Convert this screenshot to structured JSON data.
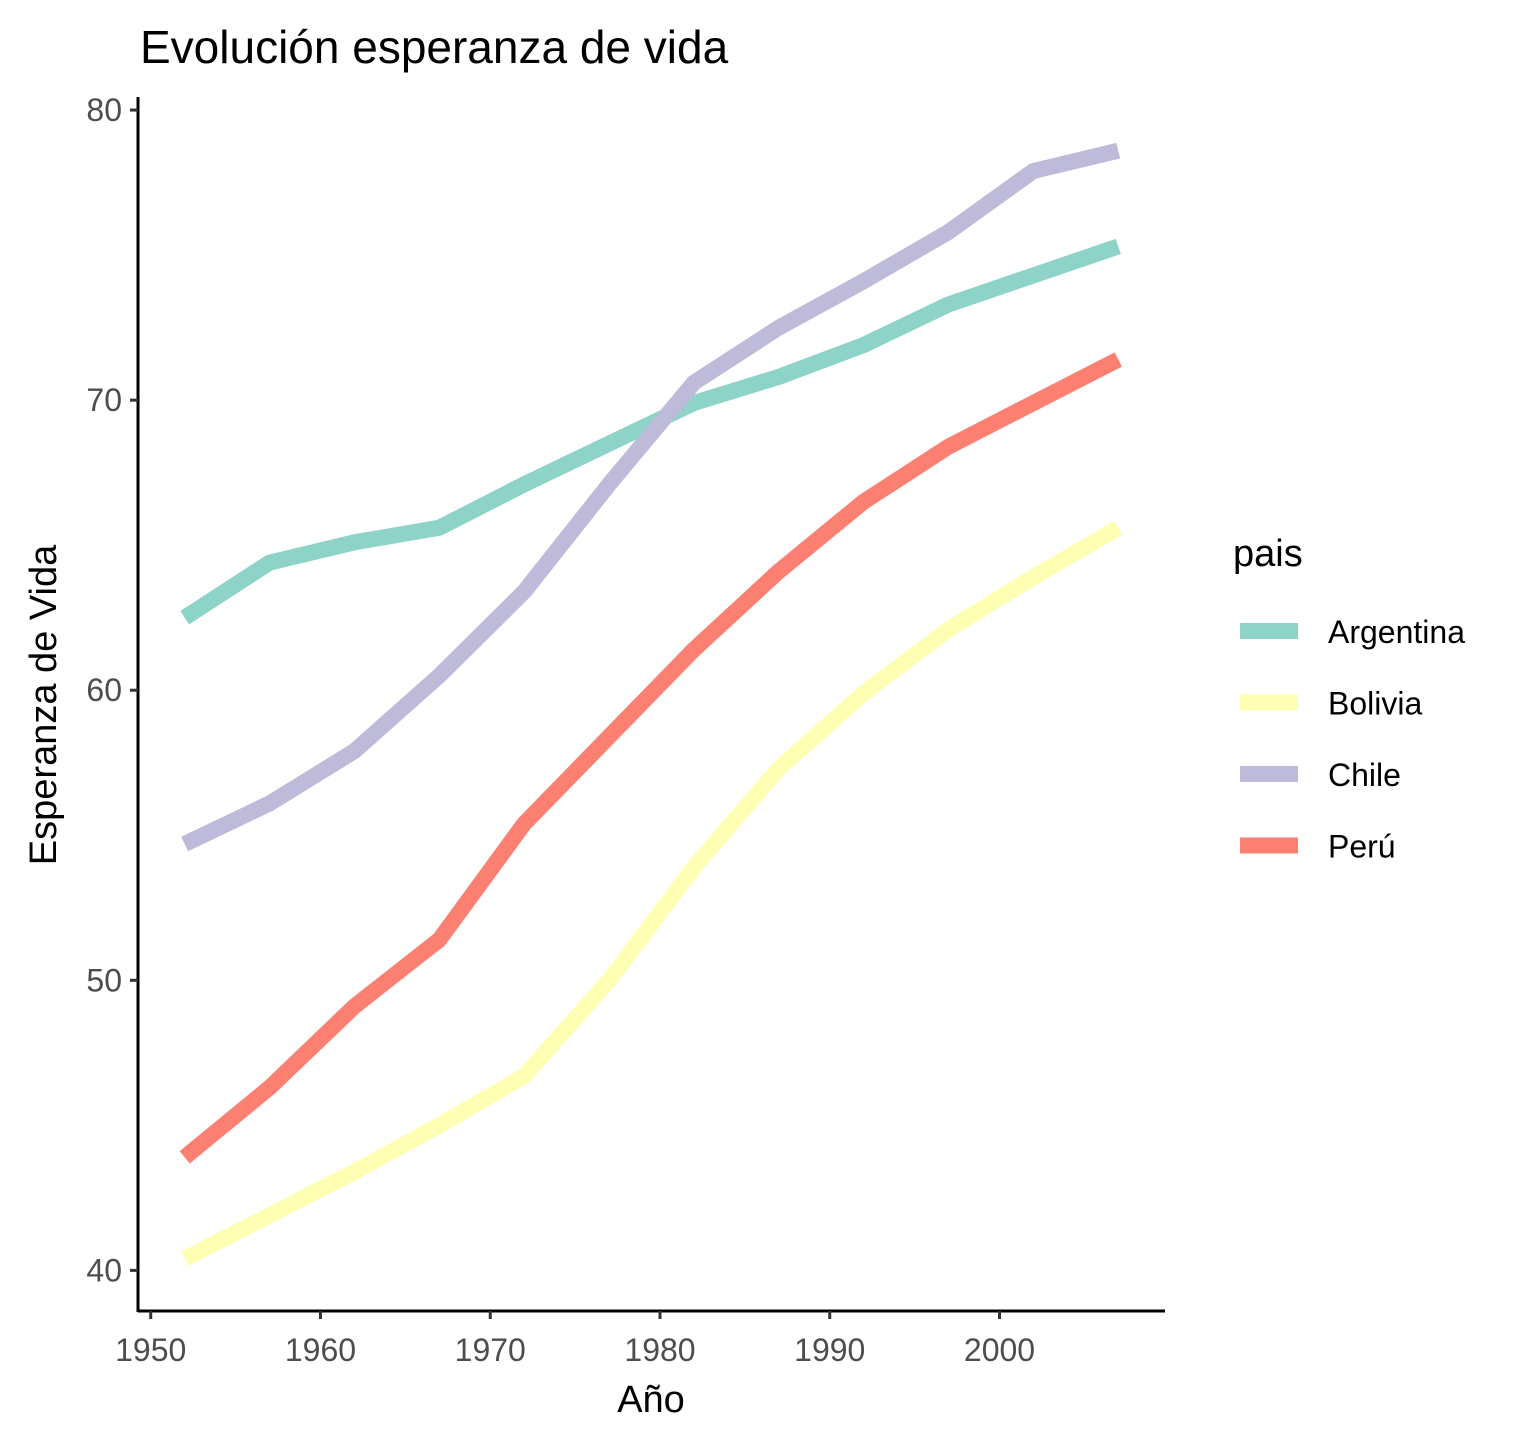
{
  "chart_data": {
    "type": "line",
    "title": "Evolución esperanza de vida",
    "xlabel": "Año",
    "ylabel": "Esperanza de Vida",
    "xlim": [
      1949.25,
      2009.75
    ],
    "ylim": [
      38.6,
      80.45
    ],
    "x_ticks": [
      1950,
      1960,
      1970,
      1980,
      1990,
      2000
    ],
    "y_ticks": [
      40,
      50,
      60,
      70,
      80
    ],
    "grid": false,
    "legend": {
      "title": "pais",
      "position": "right"
    },
    "x": [
      1952,
      1957,
      1962,
      1967,
      1972,
      1977,
      1982,
      1987,
      1992,
      1997,
      2002,
      2007
    ],
    "series": [
      {
        "name": "Argentina",
        "color": "#8DD3C7",
        "values": [
          62.5,
          64.4,
          65.1,
          65.6,
          67.1,
          68.5,
          69.9,
          70.8,
          71.9,
          73.3,
          74.3,
          75.3
        ]
      },
      {
        "name": "Bolivia",
        "color": "#FFFFB3",
        "values": [
          40.4,
          41.9,
          43.4,
          45.0,
          46.7,
          50.0,
          53.9,
          57.3,
          59.9,
          62.1,
          63.9,
          65.6
        ]
      },
      {
        "name": "Chile",
        "color": "#BEBADA",
        "values": [
          54.7,
          56.1,
          57.9,
          60.5,
          63.4,
          67.1,
          70.6,
          72.5,
          74.1,
          75.8,
          77.9,
          78.6
        ]
      },
      {
        "name": "Perú",
        "color": "#FB8072",
        "values": [
          43.9,
          46.3,
          49.1,
          51.4,
          55.4,
          58.4,
          61.4,
          64.1,
          66.5,
          68.4,
          69.9,
          71.4
        ]
      }
    ]
  }
}
